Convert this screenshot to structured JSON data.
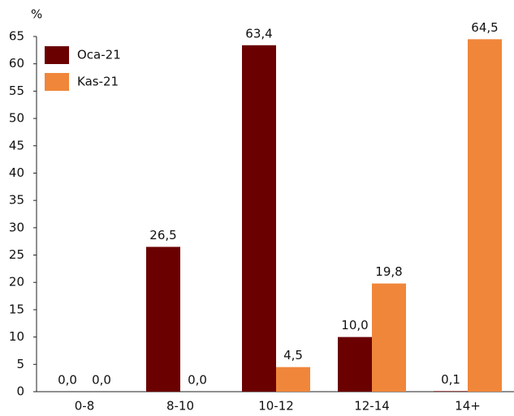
{
  "chart_data": {
    "type": "bar",
    "y_label": "%",
    "categories": [
      "0-8",
      "8-10",
      "10-12",
      "12-14",
      "14+"
    ],
    "series": [
      {
        "name": "Oca-21",
        "color": "#6b0000",
        "values": [
          0.0,
          26.5,
          63.4,
          10.0,
          0.1
        ],
        "value_labels": [
          "0,0",
          "26,5",
          "63,4",
          "10,0",
          "0,1"
        ]
      },
      {
        "name": "Kas-21",
        "color": "#f0863a",
        "values": [
          0.0,
          0.0,
          4.5,
          19.8,
          64.5
        ],
        "value_labels": [
          "0,0",
          "0,0",
          "4,5",
          "19,8",
          "64,5"
        ]
      }
    ],
    "ylim": [
      0,
      65
    ],
    "yticks": [
      0,
      5,
      10,
      15,
      20,
      25,
      30,
      35,
      40,
      45,
      50,
      55,
      60,
      65
    ],
    "grid": false,
    "legend": "top-left"
  }
}
